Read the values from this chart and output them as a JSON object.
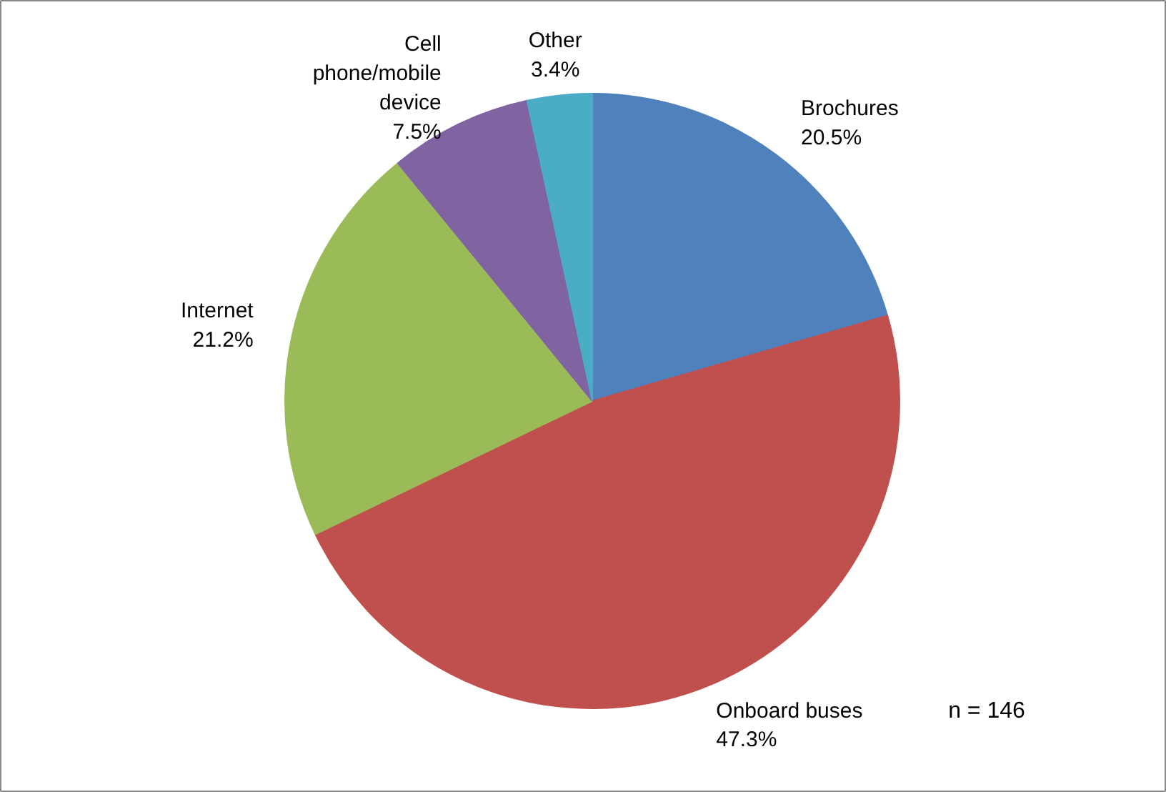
{
  "chart_data": {
    "type": "pie",
    "categories": [
      "Brochures",
      "Onboard buses",
      "Internet",
      "Cell phone/mobile device",
      "Other"
    ],
    "values": [
      20.5,
      47.3,
      21.2,
      7.5,
      3.4
    ],
    "colors": [
      "#4f81bd",
      "#c0504d",
      "#9bbb59",
      "#8064a2",
      "#4bacc6"
    ],
    "value_labels": [
      "20.5%",
      "47.3%",
      "21.2%",
      "7.5%",
      "3.4%"
    ],
    "annotations": [
      "n = 146"
    ]
  }
}
